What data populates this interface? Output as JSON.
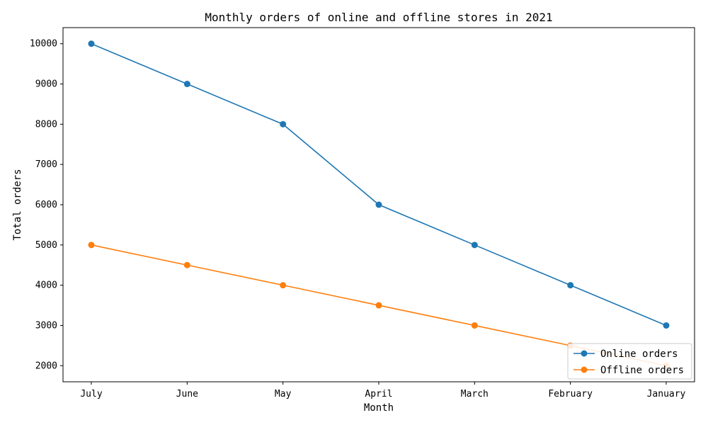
{
  "chart_data": {
    "type": "line",
    "title": "Monthly orders of online and offline stores in 2021",
    "xlabel": "Month",
    "ylabel": "Total orders",
    "categories": [
      "July",
      "June",
      "May",
      "April",
      "March",
      "February",
      "January"
    ],
    "ylim": [
      1600,
      10400
    ],
    "yticks": [
      2000,
      3000,
      4000,
      5000,
      6000,
      7000,
      8000,
      9000,
      10000
    ],
    "grid": false,
    "legend_position": "bottom-right",
    "series": [
      {
        "name": "Online orders",
        "color": "#1f77b4",
        "values": [
          10000,
          9000,
          8000,
          6000,
          5000,
          4000,
          3000
        ]
      },
      {
        "name": "Offline orders",
        "color": "#ff7f0e",
        "values": [
          5000,
          4500,
          4000,
          3500,
          3000,
          2500,
          2000
        ]
      }
    ]
  }
}
